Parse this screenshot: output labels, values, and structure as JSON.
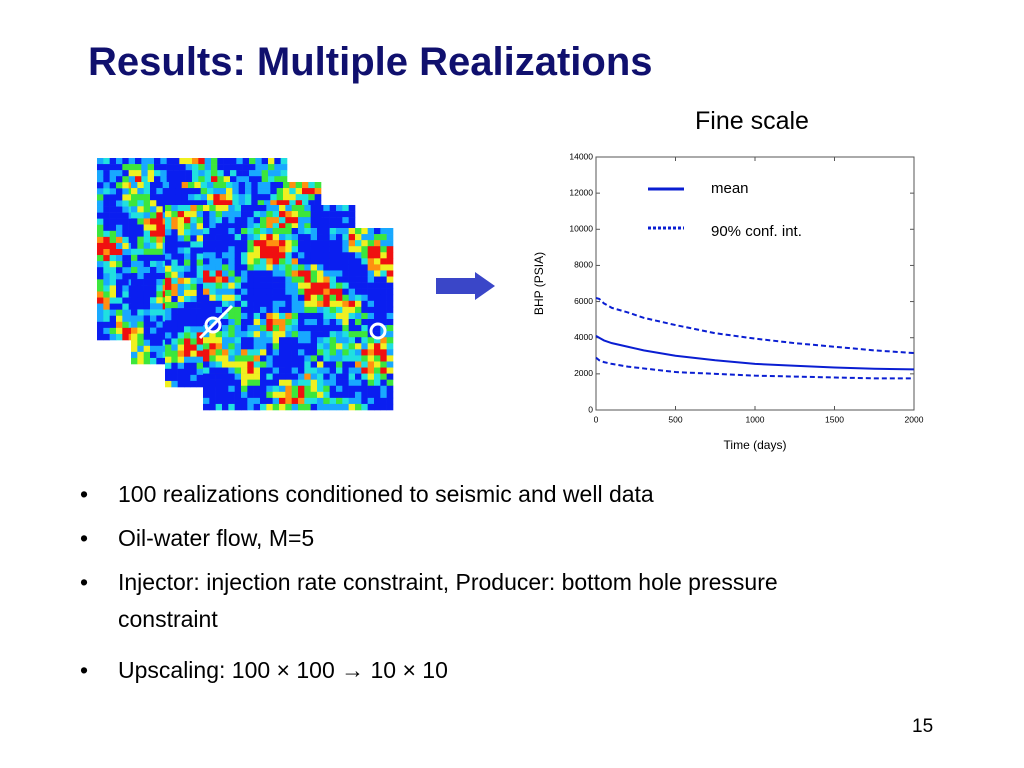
{
  "header": {
    "title": "Results: Multiple Realizations",
    "subtitle": "Fine scale"
  },
  "chart_data": {
    "type": "line",
    "ylabel": "BHP (PSIA)",
    "xlabel": "Time (days)",
    "x": [
      0,
      20,
      50,
      100,
      200,
      300,
      500,
      750,
      1000,
      1250,
      1500,
      1750,
      2000
    ],
    "series": [
      {
        "name": "mean",
        "color": "#0a1ed2",
        "style": "solid",
        "values": [
          4100,
          4000,
          3850,
          3700,
          3500,
          3300,
          3000,
          2750,
          2550,
          2450,
          2350,
          2280,
          2250
        ]
      },
      {
        "name": "90% conf. int.",
        "color": "#0a1ed2",
        "style": "dashed",
        "upper": [
          6200,
          6150,
          5900,
          5650,
          5400,
          5100,
          4700,
          4250,
          3950,
          3700,
          3500,
          3300,
          3150
        ],
        "lower": [
          2900,
          2750,
          2650,
          2550,
          2400,
          2300,
          2100,
          2000,
          1900,
          1850,
          1800,
          1750,
          1750
        ]
      }
    ],
    "xlim": [
      0,
      2000
    ],
    "xticks": [
      0,
      500,
      1000,
      1500,
      2000
    ],
    "ylim": [
      0,
      14000
    ],
    "yticks": [
      0,
      2000,
      4000,
      6000,
      8000,
      10000,
      12000,
      14000
    ],
    "legend": "upper-right",
    "grid": false
  },
  "bullets": [
    "100 realizations conditioned to seismic and well data",
    "Oil-water flow, M=5",
    "Injector: injection rate constraint, Producer: bottom hole pressure constraint",
    "Upscaling: 100 × 100 → 10 × 10"
  ],
  "page_number": "15"
}
